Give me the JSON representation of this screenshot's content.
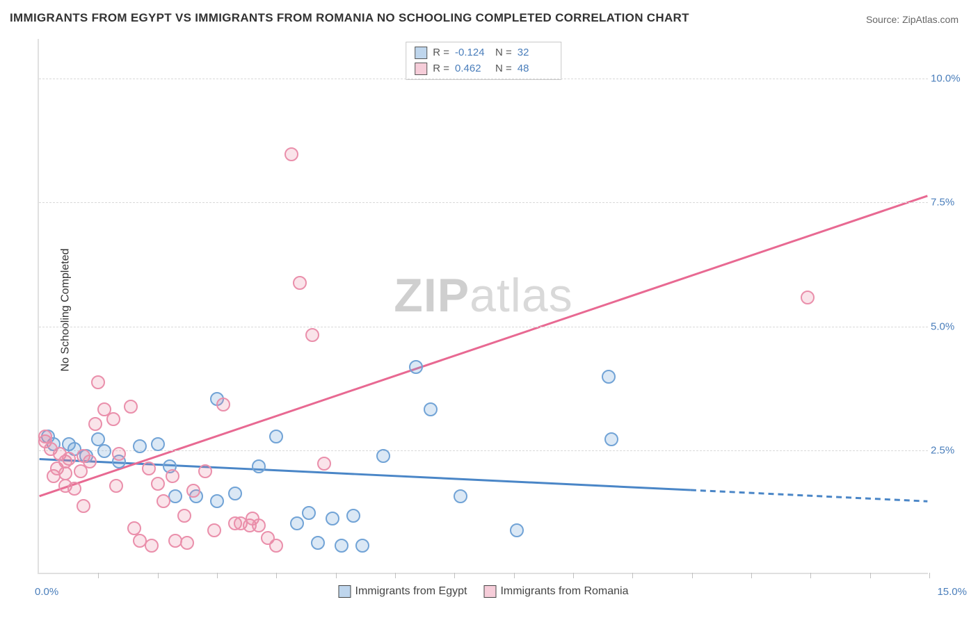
{
  "title": "IMMIGRANTS FROM EGYPT VS IMMIGRANTS FROM ROMANIA NO SCHOOLING COMPLETED CORRELATION CHART",
  "source": "Source: ZipAtlas.com",
  "ylabel": "No Schooling Completed",
  "watermark": {
    "bold": "ZIP",
    "rest": "atlas"
  },
  "chart": {
    "type": "scatter",
    "x_axis": {
      "min": 0,
      "max": 15,
      "unit": "%",
      "origin_label": "0.0%",
      "max_label": "15.0%",
      "tick_step": 1
    },
    "y_axis": {
      "min": 0,
      "max": 10.8,
      "unit": "%",
      "ticks": [
        2.5,
        5.0,
        7.5,
        10.0
      ],
      "tick_labels": [
        "2.5%",
        "5.0%",
        "7.5%",
        "10.0%"
      ]
    },
    "grid_color": "#d9d9d9",
    "axis_color": "#e0e0e0",
    "background": "#ffffff",
    "marker_radius": 10,
    "series": [
      {
        "name": "Immigrants from Egypt",
        "color": "#71a3d6",
        "fill": "rgba(113,163,214,0.25)",
        "R": "-0.124",
        "N": "32",
        "trend": {
          "slope": -0.057,
          "intercept": 2.3,
          "solid_xmax": 11.0,
          "dash_to": 15.0,
          "stroke_width": 3
        },
        "points": [
          {
            "x": 0.15,
            "y": 2.75
          },
          {
            "x": 0.25,
            "y": 2.6
          },
          {
            "x": 0.5,
            "y": 2.6
          },
          {
            "x": 0.6,
            "y": 2.5
          },
          {
            "x": 0.8,
            "y": 2.35
          },
          {
            "x": 1.0,
            "y": 2.7
          },
          {
            "x": 1.1,
            "y": 2.45
          },
          {
            "x": 1.35,
            "y": 2.25
          },
          {
            "x": 1.7,
            "y": 2.55
          },
          {
            "x": 2.0,
            "y": 2.6
          },
          {
            "x": 2.2,
            "y": 2.15
          },
          {
            "x": 2.3,
            "y": 1.55
          },
          {
            "x": 2.65,
            "y": 1.55
          },
          {
            "x": 3.0,
            "y": 1.45
          },
          {
            "x": 3.0,
            "y": 3.5
          },
          {
            "x": 3.3,
            "y": 1.6
          },
          {
            "x": 3.7,
            "y": 2.15
          },
          {
            "x": 4.0,
            "y": 2.75
          },
          {
            "x": 4.35,
            "y": 1.0
          },
          {
            "x": 4.55,
            "y": 1.2
          },
          {
            "x": 4.7,
            "y": 0.6
          },
          {
            "x": 4.95,
            "y": 1.1
          },
          {
            "x": 5.1,
            "y": 0.55
          },
          {
            "x": 5.3,
            "y": 1.15
          },
          {
            "x": 5.45,
            "y": 0.55
          },
          {
            "x": 5.8,
            "y": 2.35
          },
          {
            "x": 6.35,
            "y": 4.15
          },
          {
            "x": 6.6,
            "y": 3.3
          },
          {
            "x": 7.1,
            "y": 1.55
          },
          {
            "x": 8.05,
            "y": 0.85
          },
          {
            "x": 9.6,
            "y": 3.95
          },
          {
            "x": 9.65,
            "y": 2.7
          }
        ]
      },
      {
        "name": "Immigrants from Romania",
        "color": "#ea8fab",
        "fill": "rgba(232,131,160,0.22)",
        "R": "0.462",
        "N": "48",
        "trend": {
          "slope": 0.405,
          "intercept": 1.55,
          "solid_xmax": 15.0,
          "stroke_width": 3
        },
        "points": [
          {
            "x": 0.1,
            "y": 2.65
          },
          {
            "x": 0.1,
            "y": 2.75
          },
          {
            "x": 0.2,
            "y": 2.5
          },
          {
            "x": 0.25,
            "y": 1.95
          },
          {
            "x": 0.3,
            "y": 2.1
          },
          {
            "x": 0.35,
            "y": 2.4
          },
          {
            "x": 0.45,
            "y": 1.75
          },
          {
            "x": 0.45,
            "y": 2.25
          },
          {
            "x": 0.45,
            "y": 2.0
          },
          {
            "x": 0.5,
            "y": 2.3
          },
          {
            "x": 0.6,
            "y": 1.7
          },
          {
            "x": 0.7,
            "y": 2.05
          },
          {
            "x": 0.75,
            "y": 2.35
          },
          {
            "x": 0.75,
            "y": 1.35
          },
          {
            "x": 0.85,
            "y": 2.25
          },
          {
            "x": 0.95,
            "y": 3.0
          },
          {
            "x": 1.0,
            "y": 3.85
          },
          {
            "x": 1.1,
            "y": 3.3
          },
          {
            "x": 1.25,
            "y": 3.1
          },
          {
            "x": 1.3,
            "y": 1.75
          },
          {
            "x": 1.35,
            "y": 2.4
          },
          {
            "x": 1.55,
            "y": 3.35
          },
          {
            "x": 1.6,
            "y": 0.9
          },
          {
            "x": 1.7,
            "y": 0.65
          },
          {
            "x": 1.85,
            "y": 2.1
          },
          {
            "x": 1.9,
            "y": 0.55
          },
          {
            "x": 2.0,
            "y": 1.8
          },
          {
            "x": 2.1,
            "y": 1.45
          },
          {
            "x": 2.25,
            "y": 1.95
          },
          {
            "x": 2.3,
            "y": 0.65
          },
          {
            "x": 2.45,
            "y": 1.15
          },
          {
            "x": 2.5,
            "y": 0.6
          },
          {
            "x": 2.6,
            "y": 1.65
          },
          {
            "x": 2.8,
            "y": 2.05
          },
          {
            "x": 2.95,
            "y": 0.85
          },
          {
            "x": 3.1,
            "y": 3.4
          },
          {
            "x": 3.3,
            "y": 1.0
          },
          {
            "x": 3.4,
            "y": 1.0
          },
          {
            "x": 3.55,
            "y": 0.95
          },
          {
            "x": 3.6,
            "y": 1.1
          },
          {
            "x": 3.7,
            "y": 0.95
          },
          {
            "x": 3.85,
            "y": 0.7
          },
          {
            "x": 4.0,
            "y": 0.55
          },
          {
            "x": 4.25,
            "y": 8.45
          },
          {
            "x": 4.4,
            "y": 5.85
          },
          {
            "x": 4.6,
            "y": 4.8
          },
          {
            "x": 4.8,
            "y": 2.2
          },
          {
            "x": 12.95,
            "y": 5.55
          }
        ]
      }
    ]
  },
  "legend_bottom": [
    {
      "label": "Immigrants from Egypt",
      "swatch": "blue"
    },
    {
      "label": "Immigrants from Romania",
      "swatch": "pink"
    }
  ]
}
